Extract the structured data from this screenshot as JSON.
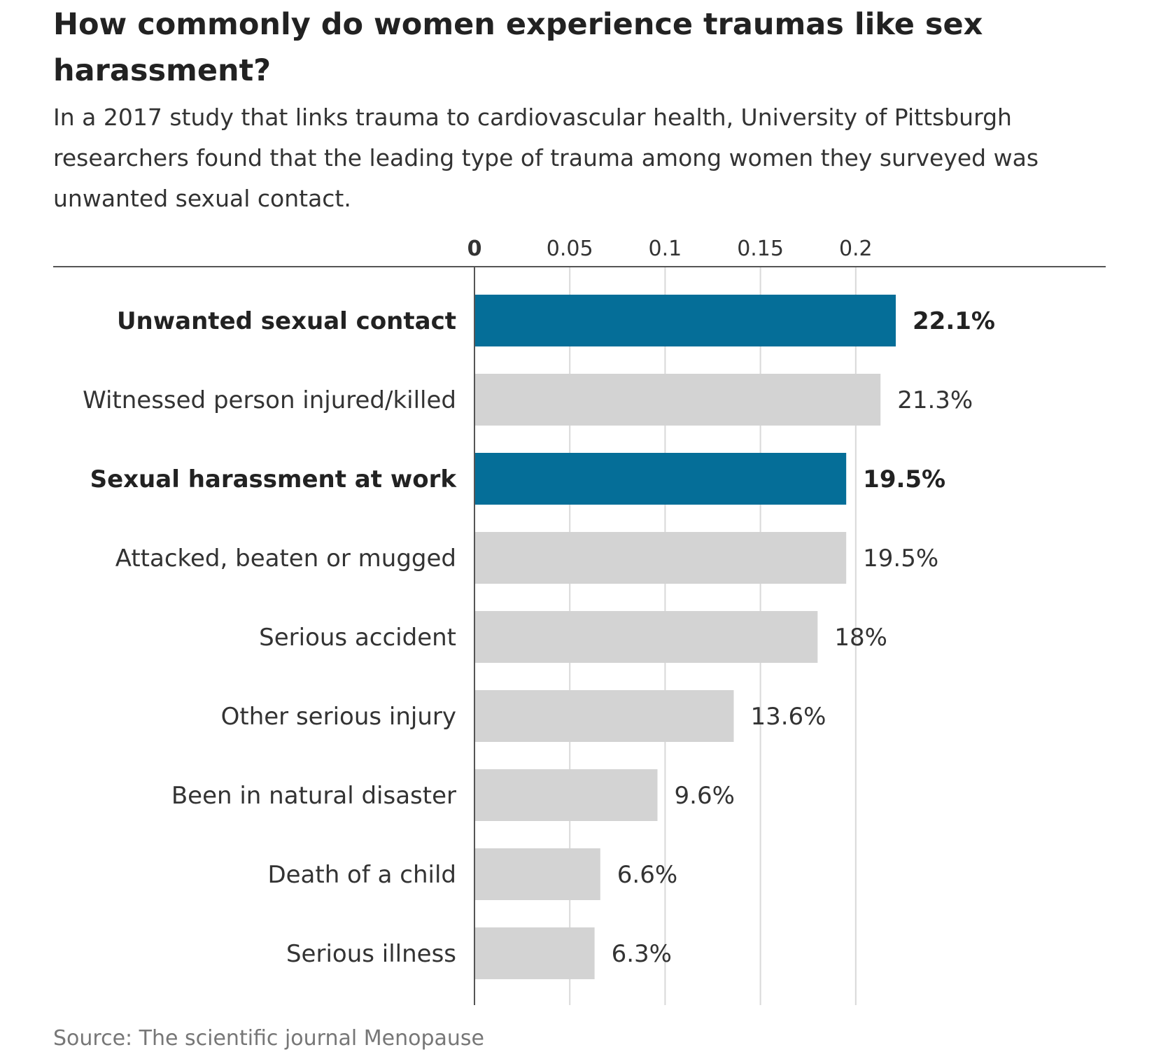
{
  "chart_data": {
    "type": "bar",
    "orientation": "horizontal",
    "title": "How commonly do women experience traumas like sex harassment?",
    "subtitle": "In a 2017 study that links trauma to cardiovascular health, University of Pittsburgh researchers found that the leading type of trauma among women they surveyed was unwanted sexual contact.",
    "source": "Source: The scientific journal Menopause",
    "categories": [
      "Unwanted sexual contact",
      "Witnessed person injured/killed",
      "Sexual harassment at work",
      "Attacked, beaten or mugged",
      "Serious accident",
      "Other serious injury",
      "Been in natural disaster",
      "Death of a child",
      "Serious illness"
    ],
    "values": [
      0.221,
      0.213,
      0.195,
      0.195,
      0.18,
      0.136,
      0.096,
      0.066,
      0.063
    ],
    "value_labels": [
      "22.1%",
      "21.3%",
      "19.5%",
      "19.5%",
      "18%",
      "13.6%",
      "9.6%",
      "6.6%",
      "6.3%"
    ],
    "highlighted": [
      true,
      false,
      true,
      false,
      false,
      false,
      false,
      false,
      false
    ],
    "xticks": [
      0,
      0.05,
      0.1,
      0.15,
      0.2
    ],
    "xtick_labels": [
      "0",
      "0.05",
      "0.1",
      "0.15",
      "0.2"
    ],
    "xlim": [
      0,
      0.25
    ],
    "grid": true,
    "colors": {
      "highlight": "#056e98",
      "default": "#d3d3d3",
      "gridline": "#d9d9d9",
      "axis": "#555555"
    }
  }
}
